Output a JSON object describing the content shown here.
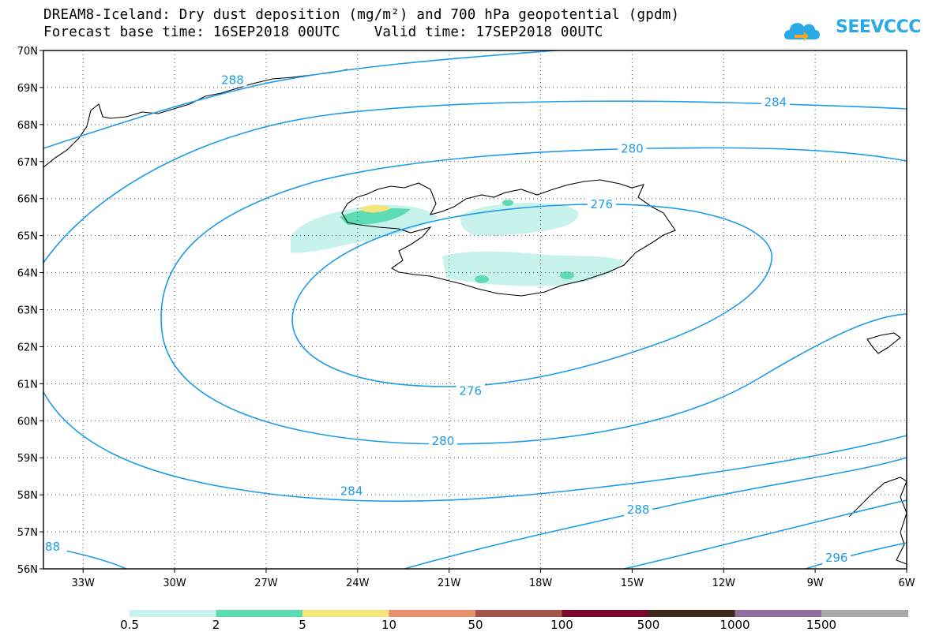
{
  "title": {
    "line1": "DREAM8-Iceland: Dry dust deposition (mg/m²) and 700 hPa geopotential (gpdm)",
    "line2": "Forecast base time: 16SEP2018 00UTC    Valid time: 17SEP2018 00UTC"
  },
  "logo": {
    "text": "SEEVCCC",
    "icon": "cloud-logo-icon",
    "color": "#29a9e6"
  },
  "map": {
    "lat_labels": [
      "70N",
      "69N",
      "68N",
      "67N",
      "66N",
      "65N",
      "64N",
      "63N",
      "62N",
      "61N",
      "60N",
      "59N",
      "58N",
      "57N",
      "56N"
    ],
    "lon_labels": [
      "33W",
      "30W",
      "27W",
      "24W",
      "21W",
      "18W",
      "15W",
      "12W",
      "9W",
      "6W"
    ],
    "lat_range": [
      56,
      70
    ],
    "lon_range": [
      -34.3,
      -6
    ],
    "gridlines": true
  },
  "contours": {
    "color": "#1e9be9",
    "labels": [
      {
        "text": "288",
        "lon": -28.1,
        "lat": 69.2
      },
      {
        "text": "284",
        "lon": -10.3,
        "lat": 68.6
      },
      {
        "text": "280",
        "lon": -15.0,
        "lat": 67.35
      },
      {
        "text": "276",
        "lon": -16.0,
        "lat": 65.85
      },
      {
        "text": "276",
        "lon": -20.3,
        "lat": 60.8
      },
      {
        "text": "280",
        "lon": -21.2,
        "lat": 59.45
      },
      {
        "text": "284",
        "lon": -24.2,
        "lat": 58.1
      },
      {
        "text": "288",
        "lon": -14.8,
        "lat": 57.6
      },
      {
        "text": "296",
        "lon": -8.3,
        "lat": 56.3
      },
      {
        "text": "88",
        "lon": -34.0,
        "lat": 56.6
      }
    ]
  },
  "colorbar": {
    "labels": [
      "0.5",
      "2",
      "5",
      "10",
      "50",
      "100",
      "500",
      "1000",
      "1500"
    ],
    "colors": [
      "#c8f2ec",
      "#5ddcb4",
      "#f3e57a",
      "#e98f6e",
      "#a6554a",
      "#7a0a2c",
      "#3b2a1c",
      "#8f6d9c",
      "#a8a8a8"
    ]
  }
}
